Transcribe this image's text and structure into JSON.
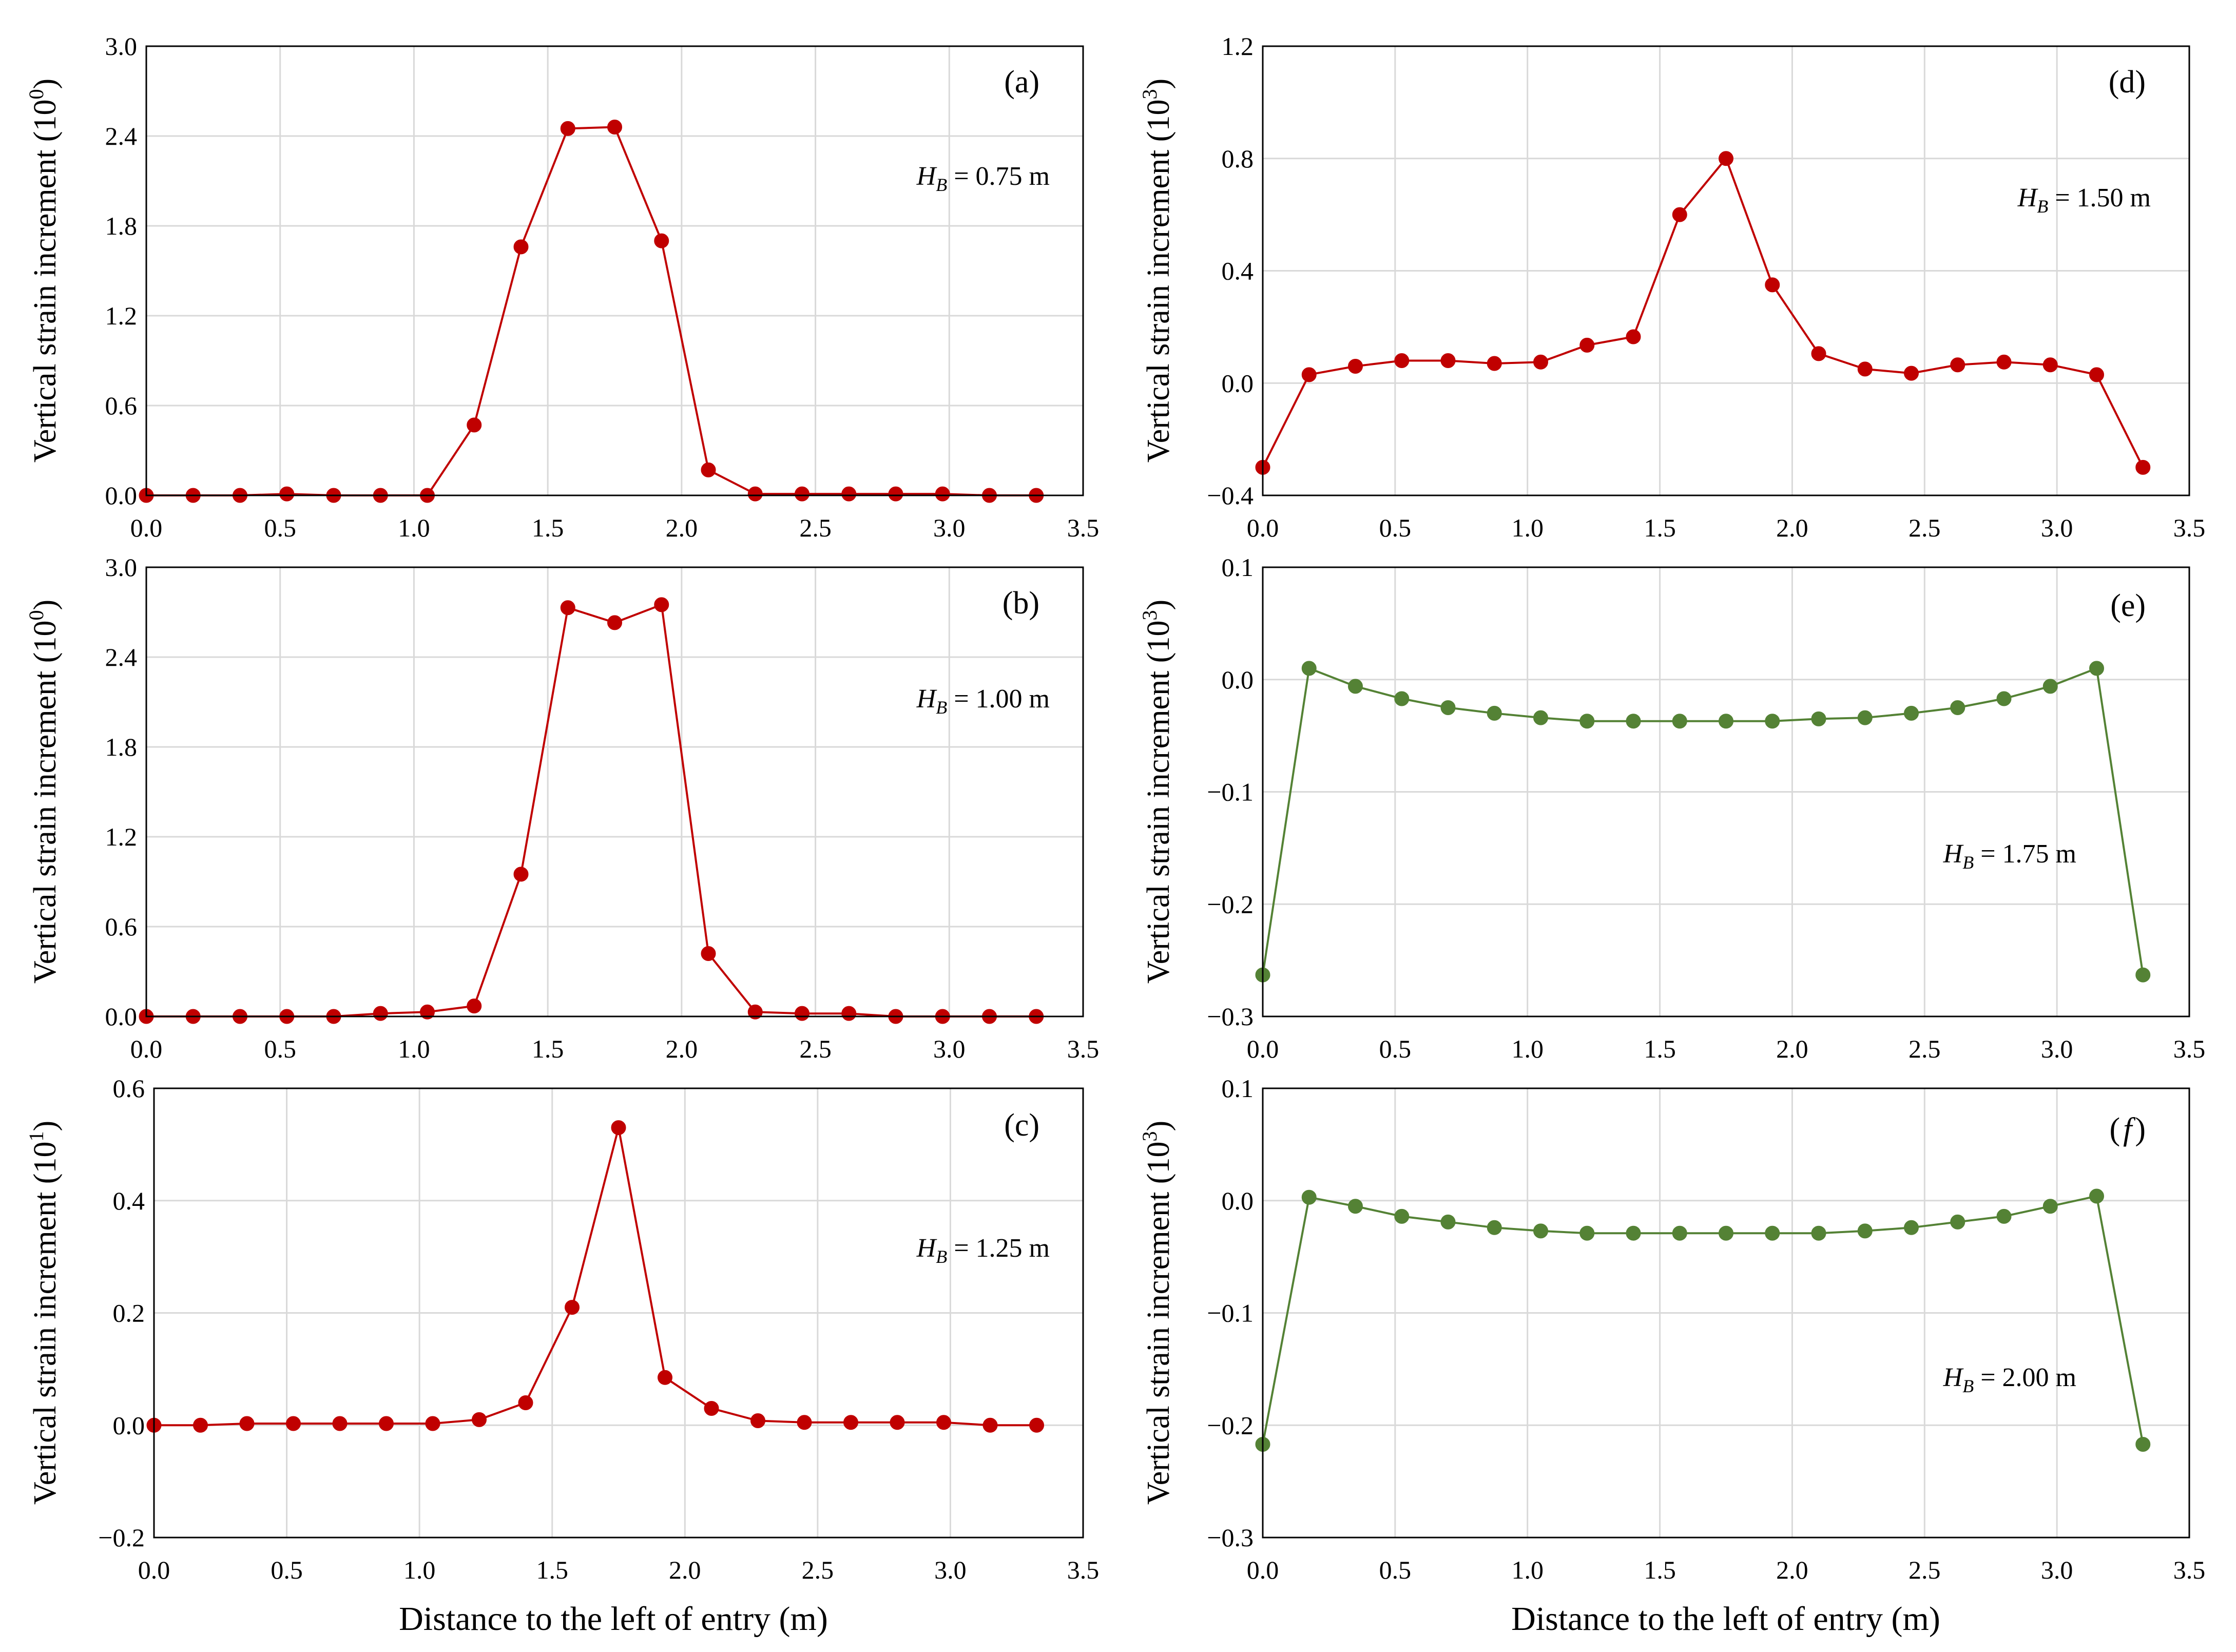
{
  "figure": {
    "xlabel": "Distance to the left of entry (m)"
  },
  "chart_data": [
    {
      "id": "a",
      "type": "line",
      "panel_label": "(a)",
      "annotation": {
        "var": "H",
        "sub": "B",
        "value": " = 0.75 m"
      },
      "ylabel_text": "Vertical strain increment (10",
      "ylabel_exp": "0",
      "ylabel_close": ")",
      "xlim": [
        0,
        3.5
      ],
      "ylim": [
        0,
        3.0
      ],
      "xticks": [
        "0.0",
        "0.5",
        "1.0",
        "1.5",
        "2.0",
        "2.5",
        "3.0",
        "3.5"
      ],
      "yticks": [
        "0.0",
        "0.6",
        "1.2",
        "1.8",
        "2.4",
        "3.0"
      ],
      "color": "#c00000",
      "grid": true,
      "x": [
        0.0,
        0.175,
        0.35,
        0.525,
        0.7,
        0.875,
        1.05,
        1.225,
        1.4,
        1.575,
        1.75,
        1.925,
        2.1,
        2.275,
        2.45,
        2.625,
        2.8,
        2.975,
        3.15,
        3.325
      ],
      "y": [
        0.0,
        0.0,
        0.0,
        0.01,
        0.0,
        0.0,
        0.0,
        0.47,
        1.66,
        2.45,
        2.46,
        1.7,
        0.17,
        0.01,
        0.01,
        0.01,
        0.01,
        0.01,
        0.0,
        0.0
      ]
    },
    {
      "id": "b",
      "type": "line",
      "panel_label": "(b)",
      "annotation": {
        "var": "H",
        "sub": "B",
        "value": " = 1.00 m"
      },
      "ylabel_text": "Vertical strain increment (10",
      "ylabel_exp": "0",
      "ylabel_close": ")",
      "xlim": [
        0,
        3.5
      ],
      "ylim": [
        0,
        3.0
      ],
      "xticks": [
        "0.0",
        "0.5",
        "1.0",
        "1.5",
        "2.0",
        "2.5",
        "3.0",
        "3.5"
      ],
      "yticks": [
        "0.0",
        "0.6",
        "1.2",
        "1.8",
        "2.4",
        "3.0"
      ],
      "color": "#c00000",
      "grid": true,
      "x": [
        0.0,
        0.175,
        0.35,
        0.525,
        0.7,
        0.875,
        1.05,
        1.225,
        1.4,
        1.575,
        1.75,
        1.925,
        2.1,
        2.275,
        2.45,
        2.625,
        2.8,
        2.975,
        3.15,
        3.325
      ],
      "y": [
        0.0,
        0.0,
        0.0,
        0.0,
        0.0,
        0.02,
        0.03,
        0.07,
        0.95,
        2.73,
        2.63,
        2.75,
        0.42,
        0.03,
        0.02,
        0.02,
        0.0,
        0.0,
        0.0,
        0.0
      ]
    },
    {
      "id": "c",
      "type": "line",
      "panel_label": "(c)",
      "annotation": {
        "var": "H",
        "sub": "B",
        "value": " = 1.25 m"
      },
      "ylabel_text": "Vertical strain increment (10",
      "ylabel_exp": "1",
      "ylabel_close": ")",
      "xlim": [
        0,
        3.5
      ],
      "ylim": [
        -0.2,
        0.6
      ],
      "xticks": [
        "0.0",
        "0.5",
        "1.0",
        "1.5",
        "2.0",
        "2.5",
        "3.0",
        "3.5"
      ],
      "yticks": [
        "-0.2",
        "0.0",
        "0.2",
        "0.4",
        "0.6"
      ],
      "color": "#c00000",
      "grid": true,
      "x": [
        0.0,
        0.175,
        0.35,
        0.525,
        0.7,
        0.875,
        1.05,
        1.225,
        1.4,
        1.575,
        1.75,
        1.925,
        2.1,
        2.275,
        2.45,
        2.625,
        2.8,
        2.975,
        3.15,
        3.325
      ],
      "y": [
        0.0,
        0.0,
        0.003,
        0.003,
        0.003,
        0.003,
        0.003,
        0.01,
        0.04,
        0.21,
        0.53,
        0.085,
        0.03,
        0.008,
        0.005,
        0.005,
        0.005,
        0.005,
        0.0,
        0.0
      ]
    },
    {
      "id": "d",
      "type": "line",
      "panel_label": "(d)",
      "annotation": {
        "var": "H",
        "sub": "B",
        "value": " = 1.50 m"
      },
      "ylabel_text": "Vertical strain increment (10",
      "ylabel_exp": "3",
      "ylabel_close": ")",
      "xlim": [
        0,
        3.5
      ],
      "ylim": [
        -0.4,
        1.2
      ],
      "xticks": [
        "0.0",
        "0.5",
        "1.0",
        "1.5",
        "2.0",
        "2.5",
        "3.0",
        "3.5"
      ],
      "yticks": [
        "-0.4",
        "0.0",
        "0.4",
        "0.8",
        "1.2"
      ],
      "color": "#c00000",
      "grid": true,
      "x": [
        0.0,
        0.175,
        0.35,
        0.525,
        0.7,
        0.875,
        1.05,
        1.225,
        1.4,
        1.575,
        1.75,
        1.925,
        2.1,
        2.275,
        2.45,
        2.625,
        2.8,
        2.975,
        3.15,
        3.325
      ],
      "y": [
        -0.3,
        0.03,
        0.06,
        0.08,
        0.08,
        0.07,
        0.075,
        0.135,
        0.165,
        0.6,
        0.8,
        0.35,
        0.105,
        0.05,
        0.035,
        0.065,
        0.075,
        0.065,
        0.03,
        -0.3
      ]
    },
    {
      "id": "e",
      "type": "line",
      "panel_label": "(e)",
      "annotation": {
        "var": "H",
        "sub": "B",
        "value": " = 1.75 m"
      },
      "ylabel_text": "Vertical strain increment (10",
      "ylabel_exp": "3",
      "ylabel_close": ")",
      "xlim": [
        0,
        3.5
      ],
      "ylim": [
        -0.3,
        0.1
      ],
      "xticks": [
        "0.0",
        "0.5",
        "1.0",
        "1.5",
        "2.0",
        "2.5",
        "3.0",
        "3.5"
      ],
      "yticks": [
        "-0.3",
        "-0.2",
        "-0.1",
        "0.0",
        "0.1"
      ],
      "color": "#548235",
      "grid": true,
      "x": [
        0.0,
        0.175,
        0.35,
        0.525,
        0.7,
        0.875,
        1.05,
        1.225,
        1.4,
        1.575,
        1.75,
        1.925,
        2.1,
        2.275,
        2.45,
        2.625,
        2.8,
        2.975,
        3.15,
        3.325
      ],
      "y": [
        -0.263,
        0.01,
        -0.006,
        -0.017,
        -0.025,
        -0.03,
        -0.034,
        -0.037,
        -0.037,
        -0.037,
        -0.037,
        -0.037,
        -0.035,
        -0.034,
        -0.03,
        -0.025,
        -0.017,
        -0.006,
        0.01,
        -0.263
      ]
    },
    {
      "id": "f",
      "type": "line",
      "panel_label_open": "(",
      "panel_label_letter": "f",
      "panel_label_close": ")",
      "annotation": {
        "var": "H",
        "sub": "B",
        "value": " = 2.00 m"
      },
      "ylabel_text": "Vertical strain increment (10",
      "ylabel_exp": "3",
      "ylabel_close": ")",
      "xlim": [
        0,
        3.5
      ],
      "ylim": [
        -0.3,
        0.1
      ],
      "xticks": [
        "0.0",
        "0.5",
        "1.0",
        "1.5",
        "2.0",
        "2.5",
        "3.0",
        "3.5"
      ],
      "yticks": [
        "-0.3",
        "-0.2",
        "-0.1",
        "0.0",
        "0.1"
      ],
      "color": "#548235",
      "grid": true,
      "x": [
        0.0,
        0.175,
        0.35,
        0.525,
        0.7,
        0.875,
        1.05,
        1.225,
        1.4,
        1.575,
        1.75,
        1.925,
        2.1,
        2.275,
        2.45,
        2.625,
        2.8,
        2.975,
        3.15,
        3.325
      ],
      "y": [
        -0.217,
        0.003,
        -0.005,
        -0.014,
        -0.019,
        -0.024,
        -0.027,
        -0.029,
        -0.029,
        -0.029,
        -0.029,
        -0.029,
        -0.029,
        -0.027,
        -0.024,
        -0.019,
        -0.014,
        -0.005,
        0.004,
        -0.217
      ]
    }
  ]
}
